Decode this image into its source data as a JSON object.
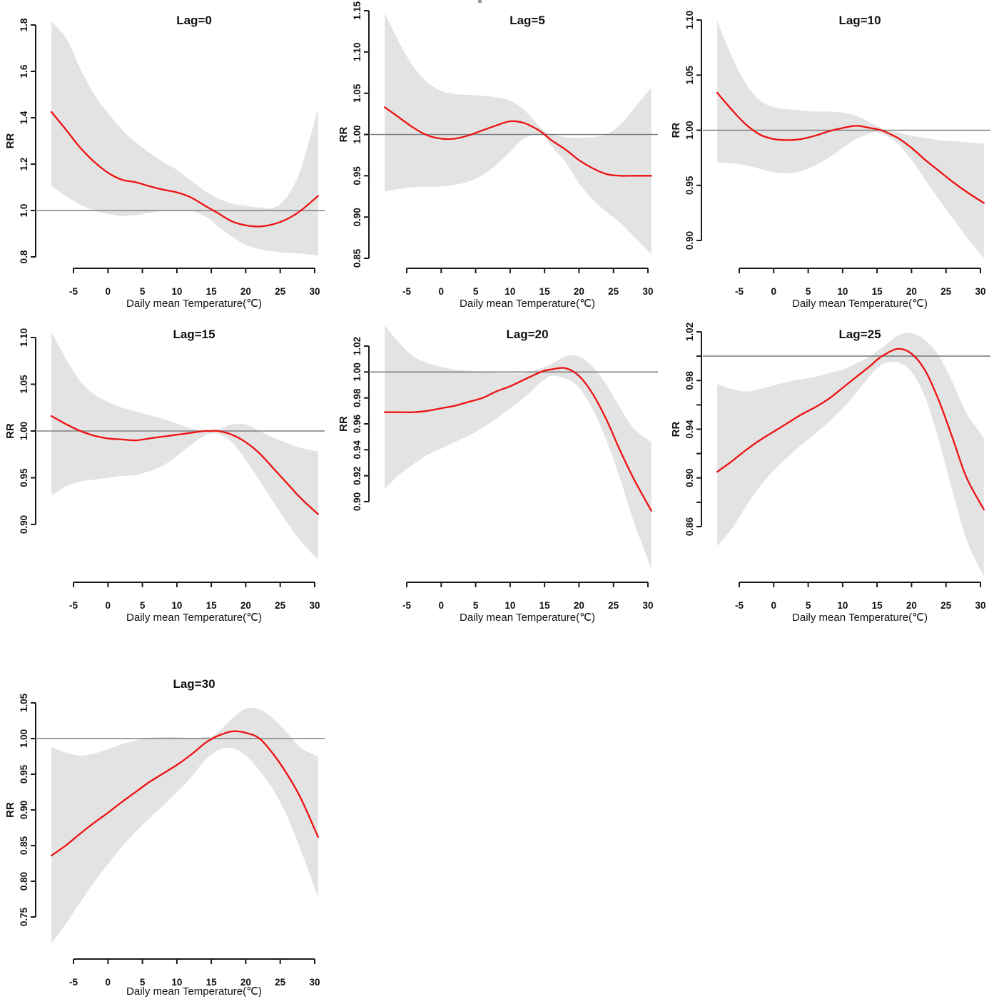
{
  "figure": {
    "background": "#ffffff",
    "panel_titles": [
      "Lag=0",
      "Lag=5",
      "Lag=10",
      "Lag=15",
      "Lag=20",
      "Lag=25",
      "Lag=30"
    ]
  },
  "chart_data": [
    {
      "type": "line",
      "title": "Lag=0",
      "xlabel": "Daily mean Temperature(℃)",
      "ylabel": "RR",
      "ref_line": 1.0,
      "grid": false,
      "legend": null,
      "xlim": [
        -8.2,
        30.5
      ],
      "ylim": [
        0.8,
        1.8
      ],
      "x_ticks": [
        -5,
        0,
        5,
        10,
        15,
        20,
        25,
        30
      ],
      "y_tick_values": [
        0.8,
        1.0,
        1.2,
        1.4,
        1.6,
        1.8
      ],
      "y_tick_labels": [
        "0.8",
        "1.0",
        "1.2",
        "1.4",
        "1.6",
        "1.8"
      ],
      "line_color": "#ee1111",
      "band_color": "#e3e3e3",
      "x": [
        -8.2,
        -6,
        -4,
        -2,
        0,
        2,
        4,
        6,
        8,
        10,
        12,
        14,
        15,
        16,
        18,
        20,
        22,
        24,
        26,
        28,
        30.5
      ],
      "fit": [
        1.425,
        1.345,
        1.27,
        1.21,
        1.163,
        1.133,
        1.122,
        1.105,
        1.09,
        1.078,
        1.057,
        1.022,
        1.005,
        0.988,
        0.953,
        0.936,
        0.931,
        0.941,
        0.963,
        1.0,
        1.063
      ],
      "ci_upper": [
        1.815,
        1.74,
        1.61,
        1.5,
        1.42,
        1.35,
        1.295,
        1.25,
        1.21,
        1.175,
        1.13,
        1.085,
        1.068,
        1.052,
        1.03,
        1.02,
        1.013,
        1.012,
        1.06,
        1.18,
        1.44
      ],
      "ci_lower": [
        1.105,
        1.06,
        1.025,
        1.0,
        0.985,
        0.976,
        0.98,
        0.99,
        0.998,
        1.0,
        1.0,
        0.975,
        0.958,
        0.93,
        0.888,
        0.852,
        0.834,
        0.824,
        0.818,
        0.814,
        0.806
      ]
    },
    {
      "type": "line",
      "title": "Lag=5",
      "xlabel": "Daily mean Temperature(℃)",
      "ylabel": "RR",
      "ref_line": 1.0,
      "grid": false,
      "legend": null,
      "xlim": [
        -8.2,
        30.5
      ],
      "ylim": [
        0.85,
        1.15
      ],
      "x_ticks": [
        -5,
        0,
        5,
        10,
        15,
        20,
        25,
        30
      ],
      "y_tick_values": [
        0.85,
        0.9,
        0.95,
        1.0,
        1.05,
        1.1,
        1.15
      ],
      "y_tick_labels": [
        "0.85",
        "0.90",
        "0.95",
        "1.00",
        "1.05",
        "1.10",
        "1.15"
      ],
      "line_color": "#ee1111",
      "band_color": "#e3e3e3",
      "x": [
        -8.2,
        -6,
        -4,
        -2,
        0,
        2,
        4,
        6,
        8,
        10,
        12,
        14,
        15,
        16,
        18,
        20,
        22,
        24,
        26,
        28,
        30.5
      ],
      "fit": [
        1.033,
        1.02,
        1.008,
        0.999,
        0.995,
        0.995,
        0.999,
        1.005,
        1.011,
        1.016,
        1.014,
        1.006,
        1.0,
        0.993,
        0.982,
        0.969,
        0.959,
        0.952,
        0.95,
        0.95,
        0.95
      ],
      "ci_upper": [
        1.147,
        1.11,
        1.082,
        1.063,
        1.053,
        1.049,
        1.048,
        1.047,
        1.045,
        1.041,
        1.03,
        1.012,
        1.004,
        1.0,
        0.997,
        0.996,
        0.997,
        1.0,
        1.012,
        1.032,
        1.057
      ],
      "ci_lower": [
        0.931,
        0.934,
        0.936,
        0.937,
        0.937,
        0.939,
        0.943,
        0.951,
        0.963,
        0.979,
        0.995,
        1.0,
        0.998,
        0.986,
        0.967,
        0.941,
        0.921,
        0.906,
        0.893,
        0.876,
        0.855
      ]
    },
    {
      "type": "line",
      "title": "Lag=10",
      "xlabel": "Daily mean Temperature(℃)",
      "ylabel": "RR",
      "ref_line": 1.0,
      "grid": false,
      "legend": null,
      "xlim": [
        -8.2,
        30.5
      ],
      "ylim": [
        0.9,
        1.1
      ],
      "x_ticks": [
        -5,
        0,
        5,
        10,
        15,
        20,
        25,
        30
      ],
      "y_tick_values": [
        0.9,
        0.95,
        1.0,
        1.05,
        1.1
      ],
      "y_tick_labels": [
        "0.90",
        "0.95",
        "1.00",
        "1.05",
        "1.10"
      ],
      "line_color": "#ee1111",
      "band_color": "#e3e3e3",
      "x": [
        -8.2,
        -6,
        -4,
        -2,
        0,
        2,
        4,
        6,
        8,
        10,
        12,
        14,
        15,
        16,
        18,
        20,
        22,
        24,
        26,
        28,
        30.5
      ],
      "fit": [
        1.034,
        1.018,
        1.005,
        0.996,
        0.992,
        0.991,
        0.992,
        0.995,
        0.999,
        1.002,
        1.004,
        1.002,
        1.001,
        0.999,
        0.993,
        0.984,
        0.973,
        0.963,
        0.953,
        0.944,
        0.934
      ],
      "ci_upper": [
        1.099,
        1.066,
        1.042,
        1.027,
        1.021,
        1.019,
        1.018,
        1.017,
        1.017,
        1.016,
        1.013,
        1.007,
        1.004,
        1.001,
        0.998,
        0.995,
        0.993,
        0.991,
        0.99,
        0.989,
        0.988
      ],
      "ci_lower": [
        0.971,
        0.97,
        0.968,
        0.965,
        0.962,
        0.961,
        0.963,
        0.968,
        0.975,
        0.984,
        0.992,
        0.997,
        0.998,
        0.996,
        0.988,
        0.973,
        0.955,
        0.937,
        0.92,
        0.903,
        0.884
      ]
    },
    {
      "type": "line",
      "title": "Lag=15",
      "xlabel": "Daily mean Temperature(℃)",
      "ylabel": "RR",
      "ref_line": 1.0,
      "grid": false,
      "legend": null,
      "xlim": [
        -8.2,
        30.5
      ],
      "ylim": [
        0.9,
        1.1
      ],
      "x_ticks": [
        -5,
        0,
        5,
        10,
        15,
        20,
        25,
        30
      ],
      "y_tick_values": [
        0.9,
        0.95,
        1.0,
        1.05,
        1.1
      ],
      "y_tick_labels": [
        "0.90",
        "0.95",
        "1.00",
        "1.05",
        "1.10"
      ],
      "line_color": "#ee1111",
      "band_color": "#e3e3e3",
      "x": [
        -8.2,
        -6,
        -4,
        -2,
        0,
        2,
        4,
        6,
        8,
        10,
        12,
        14,
        15,
        16,
        18,
        20,
        22,
        24,
        26,
        28,
        30.5
      ],
      "fit": [
        1.016,
        1.007,
        1.0,
        0.995,
        0.992,
        0.991,
        0.99,
        0.992,
        0.994,
        0.996,
        0.998,
        1.0,
        1.0,
        1.0,
        0.996,
        0.988,
        0.976,
        0.96,
        0.944,
        0.928,
        0.911
      ],
      "ci_upper": [
        1.106,
        1.076,
        1.053,
        1.039,
        1.031,
        1.025,
        1.021,
        1.017,
        1.013,
        1.008,
        1.003,
        1.0,
        1.001,
        1.002,
        1.007,
        1.007,
        1.0,
        0.993,
        0.987,
        0.982,
        0.978
      ],
      "ci_lower": [
        0.931,
        0.941,
        0.946,
        0.948,
        0.95,
        0.952,
        0.953,
        0.957,
        0.963,
        0.973,
        0.985,
        0.995,
        0.997,
        0.997,
        0.988,
        0.969,
        0.947,
        0.924,
        0.902,
        0.882,
        0.862
      ]
    },
    {
      "type": "line",
      "title": "Lag=20",
      "xlabel": "Daily mean Temperature(℃)",
      "ylabel": "RR",
      "ref_line": 1.0,
      "grid": false,
      "legend": null,
      "xlim": [
        -8.2,
        30.5
      ],
      "ylim": [
        0.9,
        1.02
      ],
      "x_ticks": [
        -5,
        0,
        5,
        10,
        15,
        20,
        25,
        30
      ],
      "y_tick_values": [
        0.9,
        0.92,
        0.94,
        0.96,
        0.98,
        1.0,
        1.02
      ],
      "y_tick_labels": [
        "0.90",
        "0.92",
        "0.94",
        "0.96",
        "0.98",
        "1.00",
        "1.02"
      ],
      "line_color": "#ee1111",
      "band_color": "#e3e3e3",
      "x": [
        -8.2,
        -6,
        -4,
        -2,
        0,
        2,
        4,
        6,
        8,
        10,
        12,
        14,
        15,
        16,
        18,
        20,
        22,
        24,
        26,
        28,
        30.5
      ],
      "fit": [
        0.969,
        0.969,
        0.969,
        0.97,
        0.972,
        0.974,
        0.977,
        0.98,
        0.985,
        0.989,
        0.994,
        0.999,
        1.001,
        1.002,
        1.003,
        0.997,
        0.983,
        0.963,
        0.939,
        0.917,
        0.893
      ],
      "ci_upper": [
        1.036,
        1.022,
        1.012,
        1.007,
        1.004,
        1.002,
        1.001,
        1.0,
        0.999,
        0.999,
        0.999,
        1.002,
        1.004,
        1.006,
        1.012,
        1.012,
        1.004,
        0.99,
        0.972,
        0.956,
        0.946
      ],
      "ci_lower": [
        0.91,
        0.921,
        0.929,
        0.936,
        0.941,
        0.946,
        0.951,
        0.957,
        0.964,
        0.972,
        0.98,
        0.99,
        0.994,
        0.997,
        0.995,
        0.988,
        0.971,
        0.947,
        0.917,
        0.884,
        0.848
      ]
    },
    {
      "type": "line",
      "title": "Lag=25",
      "xlabel": "Daily mean Temperature(℃)",
      "ylabel": "RR",
      "ref_line": 1.0,
      "grid": false,
      "legend": null,
      "xlim": [
        -8.2,
        30.5
      ],
      "ylim": [
        0.86,
        1.02
      ],
      "x_ticks": [
        -5,
        0,
        5,
        10,
        15,
        20,
        25,
        30
      ],
      "y_tick_values": [
        0.86,
        0.88,
        0.9,
        0.92,
        0.94,
        0.96,
        0.98,
        1.0,
        1.02
      ],
      "y_tick_labels": [
        "0.86",
        "",
        "0.90",
        "",
        "0.94",
        "",
        "0.98",
        "",
        "1.02"
      ],
      "line_color": "#ee1111",
      "band_color": "#e3e3e3",
      "x": [
        -8.2,
        -6,
        -4,
        -2,
        0,
        2,
        4,
        6,
        8,
        10,
        12,
        14,
        15,
        16,
        18,
        20,
        22,
        24,
        26,
        28,
        30.5
      ],
      "fit": [
        0.905,
        0.914,
        0.923,
        0.931,
        0.938,
        0.945,
        0.952,
        0.958,
        0.965,
        0.974,
        0.983,
        0.992,
        0.997,
        1.001,
        1.006,
        1.002,
        0.988,
        0.963,
        0.932,
        0.9,
        0.874
      ],
      "ci_upper": [
        0.977,
        0.973,
        0.971,
        0.973,
        0.976,
        0.979,
        0.981,
        0.983,
        0.986,
        0.989,
        0.994,
        1.0,
        1.004,
        1.008,
        1.017,
        1.019,
        1.013,
        1.0,
        0.978,
        0.953,
        0.933
      ],
      "ci_lower": [
        0.844,
        0.859,
        0.877,
        0.893,
        0.906,
        0.917,
        0.927,
        0.936,
        0.946,
        0.957,
        0.97,
        0.984,
        0.99,
        0.994,
        0.995,
        0.987,
        0.966,
        0.93,
        0.888,
        0.849,
        0.819
      ]
    },
    {
      "type": "line",
      "title": "Lag=30",
      "xlabel": "Daily mean Temperature(℃)",
      "ylabel": "RR",
      "ref_line": 1.0,
      "grid": false,
      "legend": null,
      "xlim": [
        -8.2,
        30.5
      ],
      "ylim": [
        0.75,
        1.05
      ],
      "x_ticks": [
        -5,
        0,
        5,
        10,
        15,
        20,
        25,
        30
      ],
      "y_tick_values": [
        0.75,
        0.8,
        0.85,
        0.9,
        0.95,
        1.0,
        1.05
      ],
      "y_tick_labels": [
        "0.75",
        "0.80",
        "0.85",
        "0.90",
        "0.95",
        "1.00",
        "1.05"
      ],
      "line_color": "#ee1111",
      "band_color": "#e3e3e3",
      "x": [
        -8.2,
        -6,
        -4,
        -2,
        0,
        2,
        4,
        6,
        8,
        10,
        12,
        14,
        15,
        16,
        18,
        20,
        22,
        24,
        26,
        28,
        30.5
      ],
      "fit": [
        0.836,
        0.851,
        0.867,
        0.882,
        0.896,
        0.911,
        0.925,
        0.939,
        0.951,
        0.963,
        0.977,
        0.993,
        0.999,
        1.004,
        1.01,
        1.008,
        1.0,
        0.978,
        0.95,
        0.916,
        0.862
      ],
      "ci_upper": [
        0.988,
        0.98,
        0.976,
        0.979,
        0.985,
        0.992,
        0.997,
        1.001,
        1.002,
        1.002,
        1.001,
        1.002,
        1.003,
        1.009,
        1.028,
        1.042,
        1.041,
        1.028,
        1.008,
        0.987,
        0.975
      ],
      "ci_lower": [
        0.713,
        0.742,
        0.771,
        0.799,
        0.824,
        0.848,
        0.869,
        0.888,
        0.906,
        0.925,
        0.945,
        0.969,
        0.977,
        0.984,
        0.987,
        0.976,
        0.955,
        0.928,
        0.891,
        0.843,
        0.778
      ]
    }
  ]
}
